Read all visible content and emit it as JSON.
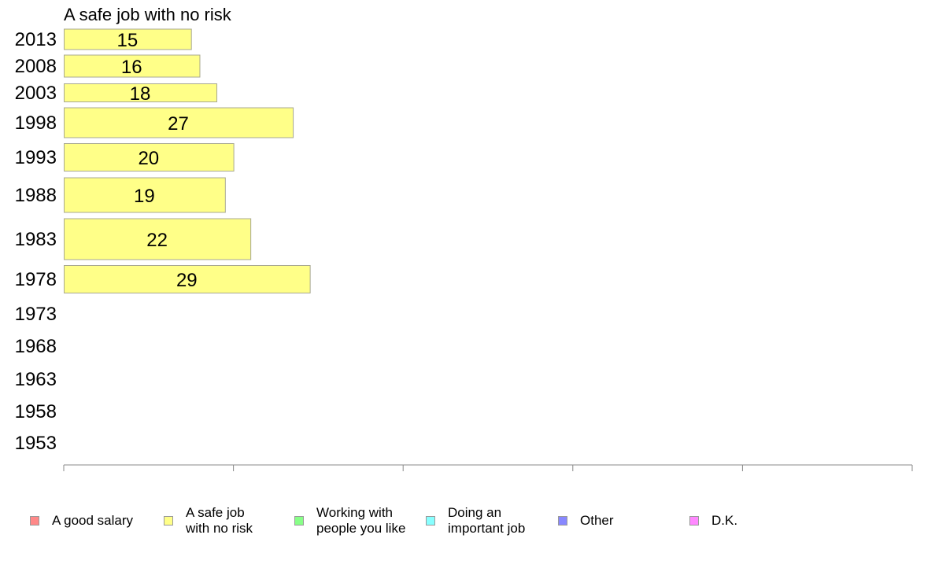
{
  "chart_data": {
    "type": "bar",
    "orientation": "horizontal",
    "title": "A safe job with no risk",
    "categories": [
      "2013",
      "2008",
      "2003",
      "1998",
      "1993",
      "1988",
      "1983",
      "1978",
      "1973",
      "1968",
      "1963",
      "1958",
      "1953"
    ],
    "series": [
      {
        "name": "A safe job\nwith no risk",
        "values": [
          15,
          16,
          18,
          27,
          20,
          19,
          22,
          29,
          null,
          null,
          null,
          null,
          null
        ]
      }
    ],
    "data_labels": [
      "15",
      "16",
      "18",
      "27",
      "20",
      "19",
      "22",
      "29",
      "",
      "",
      "",
      "",
      ""
    ],
    "xlim": [
      0,
      100
    ],
    "xticks": [
      "0",
      "20",
      "40",
      "60",
      "80",
      "100"
    ],
    "grid": false,
    "legend_position": "bottom",
    "bar_color": "#ffff88",
    "bar_border_color": "#a8a890"
  },
  "legend": {
    "items": [
      {
        "label": "A good salary",
        "color": "#ff8888"
      },
      {
        "label": "A safe job\nwith no risk",
        "color": "#ffff88"
      },
      {
        "label": "Working with\npeople you like",
        "color": "#88ff88"
      },
      {
        "label": "Doing an\nimportant job",
        "color": "#88ffff"
      },
      {
        "label": "Other",
        "color": "#8888ff"
      },
      {
        "label": "D.K.",
        "color": "#ff88ff"
      }
    ]
  }
}
